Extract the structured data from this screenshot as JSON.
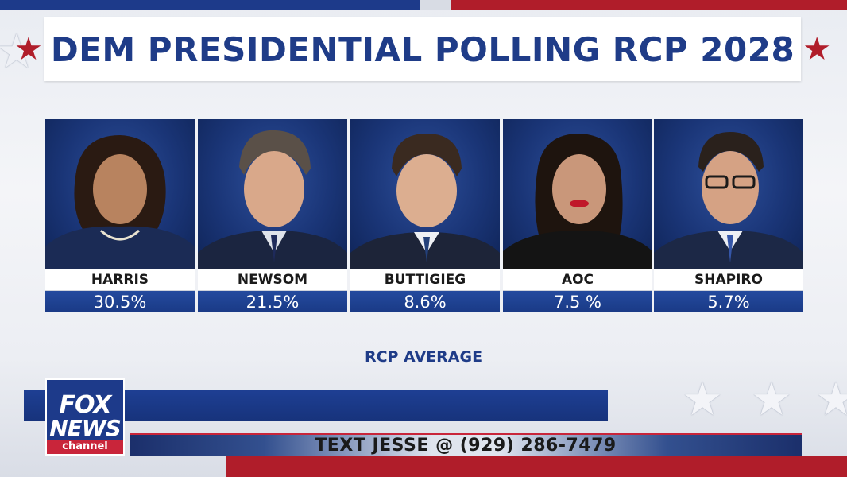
{
  "banner": {
    "title": "DEM PRESIDENTIAL POLLING RCP 2028",
    "star_icon": "star-icon",
    "star_color": "#b01d2a",
    "title_color": "#1f3c88"
  },
  "candidates": [
    {
      "name": "HARRIS",
      "percent": "30.5%"
    },
    {
      "name": "NEWSOM",
      "percent": "21.5%"
    },
    {
      "name": "BUTTIGIEG",
      "percent": "8.6%"
    },
    {
      "name": "AOC",
      "percent": "7.5 %"
    },
    {
      "name": "SHAPIRO",
      "percent": "5.7%"
    }
  ],
  "footer": {
    "label": "RCP AVERAGE"
  },
  "lower_third": {
    "ticker": "TEXT JESSE @ (929) 286-7479"
  },
  "logo": {
    "line1": "FOX",
    "line2": "NEWS",
    "line3": "channel"
  },
  "colors": {
    "brand_blue": "#1d3a8a",
    "brand_red": "#b01d2a"
  }
}
